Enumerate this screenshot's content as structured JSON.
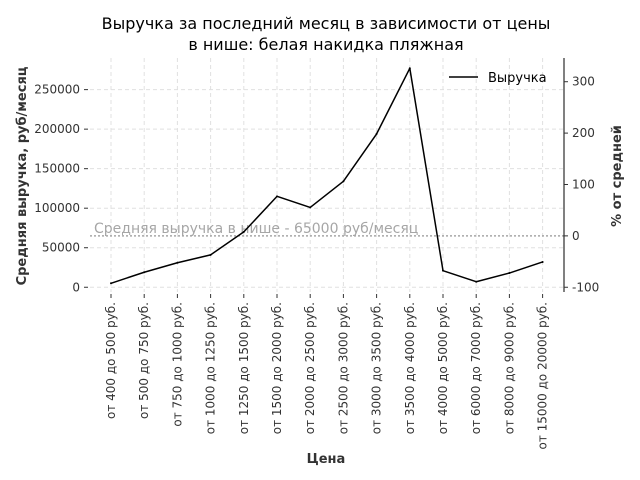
{
  "chart_data": {
    "type": "line",
    "title": [
      "Выручка за последний месяц в зависимости от цены",
      "в нише: белая накидка пляжная"
    ],
    "xlabel": "Цена",
    "ylabel": "Средняя выручка, руб/месяц",
    "y2label": "% от средней",
    "categories": [
      "от 400 до 500 руб.",
      "от 500 до 750 руб.",
      "от 750 до 1000 руб.",
      "от 1000 до 1250 руб.",
      "от 1250 до 1500 руб.",
      "от 1500 до 2000 руб.",
      "от 2000 до 2500 руб.",
      "от 2500 до 3000 руб.",
      "от 3000 до 3500 руб.",
      "от 3500 до 4000 руб.",
      "от 4000 до 5000 руб.",
      "от 6000 до 7000 руб.",
      "от 8000 до 9000 руб.",
      "от 15000 до 20000 руб."
    ],
    "series": [
      {
        "name": "Выручка",
        "values": [
          5000,
          19000,
          31000,
          41000,
          70000,
          115000,
          101000,
          134000,
          194000,
          277000,
          21000,
          7000,
          18000,
          32000
        ]
      }
    ],
    "ylim": [
      -6000,
      290000
    ],
    "yticks": [
      0,
      50000,
      100000,
      150000,
      200000,
      250000
    ],
    "y2ticks": [
      -100,
      0,
      100,
      200,
      300
    ],
    "average": 65000,
    "annotation": "Средняя выручка в нише - 65000 руб/месяц",
    "grid": true,
    "legend_position": "top-right",
    "colors": {
      "line": "#000000",
      "average_line": "#a6a6a6",
      "annotation": "#a6a6a6",
      "grid": "#e0e0e0"
    }
  }
}
